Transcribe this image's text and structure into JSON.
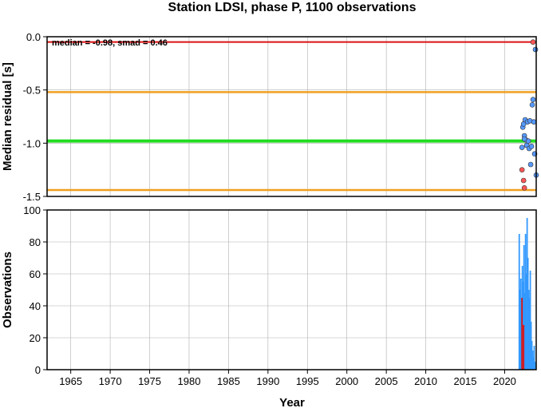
{
  "chart_data": [
    {
      "panel": "residuals",
      "type": "scatter",
      "title": "Station LDSI, phase P, 1100 observations",
      "xlabel": "",
      "ylabel": "Median residual [s]",
      "xlim": [
        1962,
        2024
      ],
      "ylim": [
        -1.5,
        0.0
      ],
      "yticks": [
        0.0,
        -0.5,
        -1.0,
        -1.5
      ],
      "ytick_labels": [
        "0.0",
        "-0.5",
        "-1.0",
        "-1.5"
      ],
      "grid": true,
      "annotation": "median = -0.98, smad = 0.46",
      "reference_lines": [
        {
          "name": "median",
          "y": -0.98,
          "color": "#22dd22"
        },
        {
          "name": "upper",
          "y": -0.52,
          "color": "#f0a020"
        },
        {
          "name": "lower",
          "y": -1.44,
          "color": "#f0a020"
        },
        {
          "name": "top",
          "y": -0.05,
          "color": "#dd1111"
        }
      ],
      "series": [
        {
          "color": "#5599ff",
          "points": [
            [
              2022.3,
              -0.85
            ],
            [
              2022.4,
              -0.82
            ],
            [
              2022.5,
              -0.93
            ],
            [
              2022.6,
              -0.78
            ],
            [
              2022.7,
              -0.97
            ],
            [
              2022.8,
              -1.02
            ],
            [
              2022.9,
              -0.8
            ],
            [
              2023.0,
              -0.98
            ],
            [
              2023.1,
              -1.05
            ],
            [
              2023.2,
              -0.79
            ],
            [
              2023.3,
              -1.2
            ],
            [
              2023.4,
              -1.03
            ],
            [
              2023.5,
              -0.64
            ],
            [
              2023.6,
              -0.59
            ],
            [
              2023.7,
              -0.8
            ],
            [
              2023.8,
              -1.1
            ],
            [
              2023.9,
              -0.12
            ],
            [
              2024.0,
              -1.3
            ],
            [
              2022.2,
              -1.04
            ],
            [
              2022.5,
              -0.96
            ]
          ]
        },
        {
          "color": "#ff5555",
          "points": [
            [
              2022.2,
              -1.25
            ],
            [
              2022.4,
              -1.35
            ],
            [
              2022.5,
              -1.42
            ],
            [
              2023.6,
              -0.05
            ]
          ]
        }
      ]
    },
    {
      "panel": "observations",
      "type": "bar",
      "xlabel": "Year",
      "ylabel": "Observations",
      "xlim": [
        1962,
        2024
      ],
      "ylim": [
        0,
        100
      ],
      "xticks": [
        1965,
        1970,
        1975,
        1980,
        1985,
        1990,
        1995,
        2000,
        2005,
        2010,
        2015,
        2020
      ],
      "yticks": [
        0,
        20,
        40,
        60,
        80,
        100
      ],
      "grid": true,
      "series": [
        {
          "color": "#3399ff",
          "points": [
            [
              2021.85,
              85
            ],
            [
              2021.95,
              50
            ],
            [
              2022.05,
              57
            ],
            [
              2022.15,
              42
            ],
            [
              2022.25,
              65
            ],
            [
              2022.35,
              55
            ],
            [
              2022.45,
              78
            ],
            [
              2022.55,
              48
            ],
            [
              2022.65,
              85
            ],
            [
              2022.75,
              60
            ],
            [
              2022.85,
              95
            ],
            [
              2022.95,
              70
            ],
            [
              2023.05,
              50
            ],
            [
              2023.15,
              45
            ],
            [
              2023.25,
              62
            ],
            [
              2023.35,
              30
            ],
            [
              2023.45,
              18
            ],
            [
              2023.55,
              12
            ],
            [
              2023.65,
              8
            ],
            [
              2023.75,
              15
            ],
            [
              2023.85,
              5
            ],
            [
              2023.95,
              3
            ]
          ]
        },
        {
          "color": "#dd1111",
          "points": [
            [
              2022.2,
              45
            ],
            [
              2022.4,
              28
            ]
          ]
        }
      ]
    }
  ]
}
